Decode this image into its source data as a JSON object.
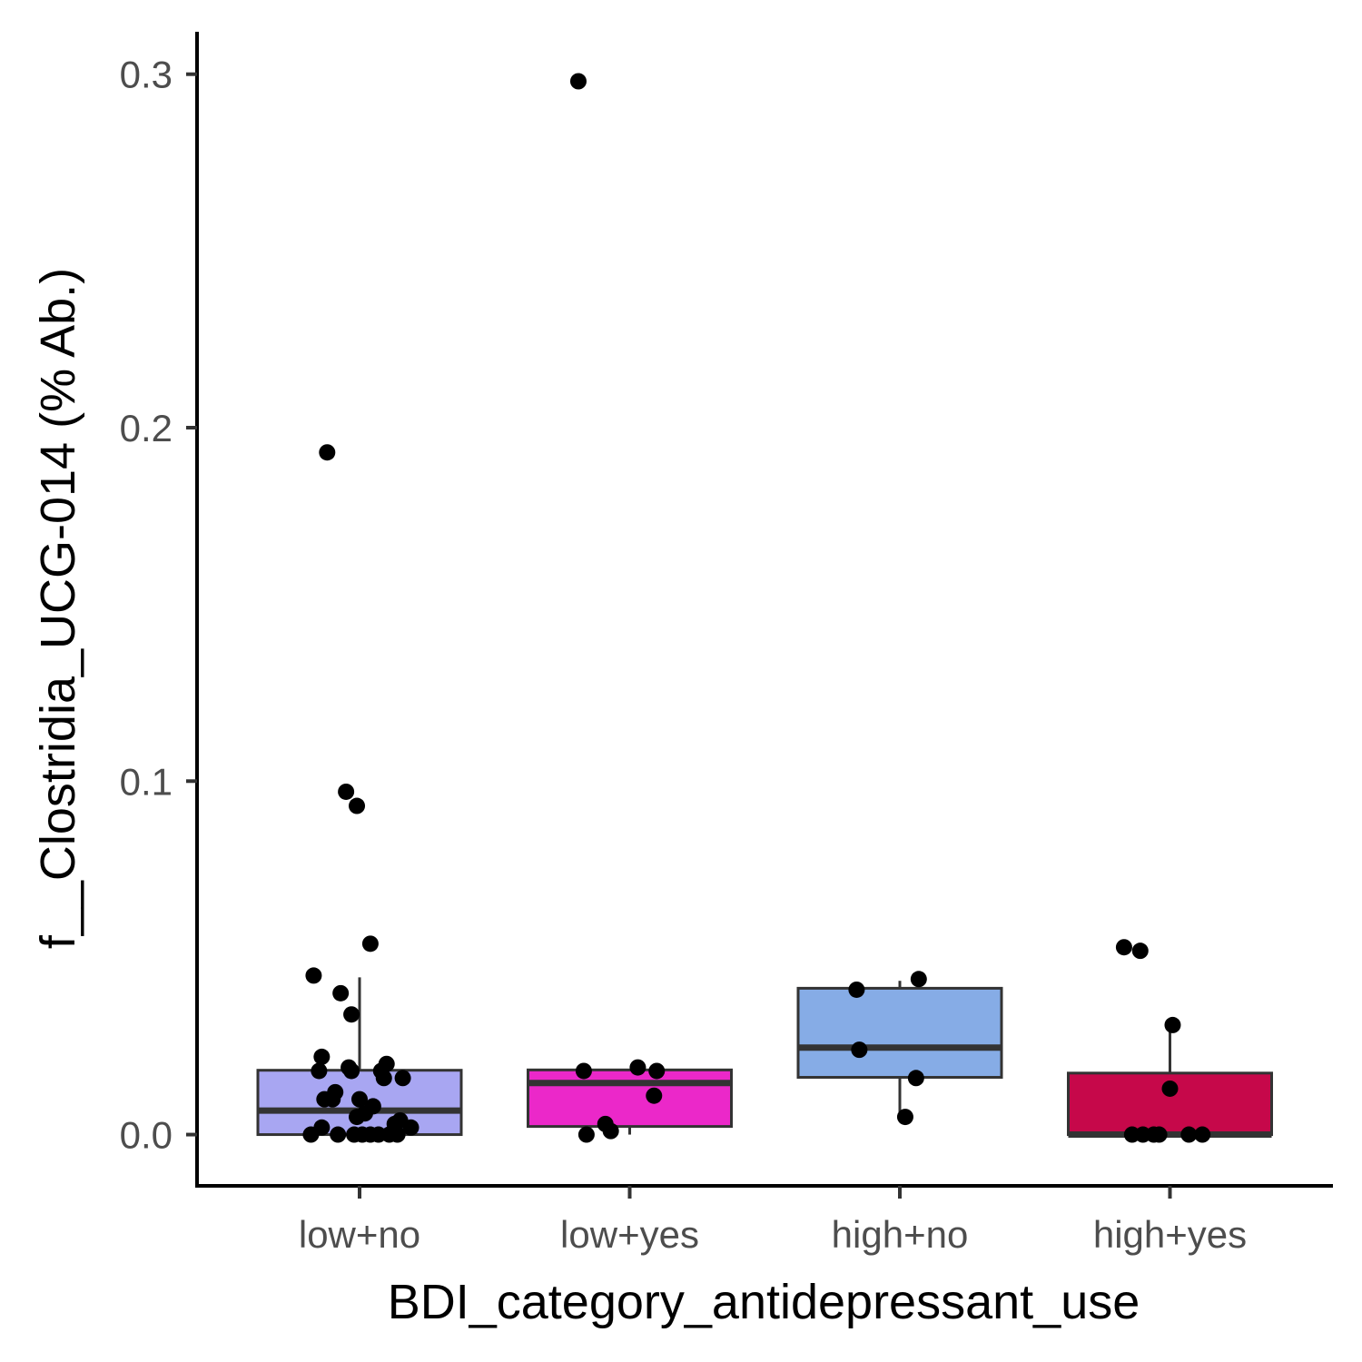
{
  "chart_data": {
    "type": "box",
    "xlabel": "BDI_category_antidepressant_use",
    "ylabel": "f__Clostridia_UCG-014 (% Ab.)",
    "ylim": [
      -0.0145,
      0.312
    ],
    "yticks": [
      0.0,
      0.1,
      0.2,
      0.3
    ],
    "ytick_labels": [
      "0.0",
      "0.1",
      "0.2",
      "0.3"
    ],
    "categories": [
      "low+no",
      "low+yes",
      "high+no",
      "high+yes"
    ],
    "grid": false,
    "legend": "none",
    "box_stroke_color": "#333333",
    "point_color": "#000000",
    "boxes": [
      {
        "category": "low+no",
        "fill": "#a8a6f2",
        "lower_whisker": 0.0,
        "q1": 0.0,
        "median": 0.0068,
        "q3": 0.0182,
        "upper_whisker": 0.0445
      },
      {
        "category": "low+yes",
        "fill": "#eb28c9",
        "lower_whisker": 0.0,
        "q1": 0.0023,
        "median": 0.0146,
        "q3": 0.0183,
        "upper_whisker": 0.0185
      },
      {
        "category": "high+no",
        "fill": "#86ace6",
        "lower_whisker": 0.005,
        "q1": 0.0162,
        "median": 0.0246,
        "q3": 0.0414,
        "upper_whisker": 0.0435
      },
      {
        "category": "high+yes",
        "fill": "#c6084a",
        "lower_whisker": 0.0,
        "q1": 0.0,
        "median": 0.0,
        "q3": 0.0174,
        "upper_whisker": 0.0314
      }
    ],
    "points": [
      {
        "category": "low+no",
        "jitter": -0.12,
        "y": 0.193
      },
      {
        "category": "low+no",
        "jitter": -0.05,
        "y": 0.097
      },
      {
        "category": "low+no",
        "jitter": -0.01,
        "y": 0.093
      },
      {
        "category": "low+no",
        "jitter": 0.04,
        "y": 0.054
      },
      {
        "category": "low+no",
        "jitter": -0.17,
        "y": 0.045
      },
      {
        "category": "low+no",
        "jitter": -0.07,
        "y": 0.04
      },
      {
        "category": "low+no",
        "jitter": -0.03,
        "y": 0.034
      },
      {
        "category": "low+no",
        "jitter": -0.14,
        "y": 0.022
      },
      {
        "category": "low+no",
        "jitter": -0.04,
        "y": 0.019
      },
      {
        "category": "low+no",
        "jitter": 0.1,
        "y": 0.02
      },
      {
        "category": "low+no",
        "jitter": -0.15,
        "y": 0.018
      },
      {
        "category": "low+no",
        "jitter": 0.08,
        "y": 0.018
      },
      {
        "category": "low+no",
        "jitter": -0.03,
        "y": 0.018
      },
      {
        "category": "low+no",
        "jitter": 0.16,
        "y": 0.016
      },
      {
        "category": "low+no",
        "jitter": 0.09,
        "y": 0.016
      },
      {
        "category": "low+no",
        "jitter": -0.09,
        "y": 0.012
      },
      {
        "category": "low+no",
        "jitter": -0.13,
        "y": 0.01
      },
      {
        "category": "low+no",
        "jitter": -0.1,
        "y": 0.01
      },
      {
        "category": "low+no",
        "jitter": 0.0,
        "y": 0.01
      },
      {
        "category": "low+no",
        "jitter": 0.05,
        "y": 0.008
      },
      {
        "category": "low+no",
        "jitter": 0.02,
        "y": 0.006
      },
      {
        "category": "low+no",
        "jitter": -0.01,
        "y": 0.005
      },
      {
        "category": "low+no",
        "jitter": 0.15,
        "y": 0.004
      },
      {
        "category": "low+no",
        "jitter": 0.13,
        "y": 0.003
      },
      {
        "category": "low+no",
        "jitter": 0.19,
        "y": 0.002
      },
      {
        "category": "low+no",
        "jitter": -0.14,
        "y": 0.002
      },
      {
        "category": "low+no",
        "jitter": -0.18,
        "y": 0.0
      },
      {
        "category": "low+no",
        "jitter": -0.08,
        "y": 0.0
      },
      {
        "category": "low+no",
        "jitter": -0.02,
        "y": 0.0
      },
      {
        "category": "low+no",
        "jitter": 0.01,
        "y": 0.0
      },
      {
        "category": "low+no",
        "jitter": 0.04,
        "y": 0.0
      },
      {
        "category": "low+no",
        "jitter": 0.07,
        "y": 0.0
      },
      {
        "category": "low+no",
        "jitter": 0.11,
        "y": 0.0
      },
      {
        "category": "low+no",
        "jitter": 0.14,
        "y": 0.0
      },
      {
        "category": "low+yes",
        "jitter": -0.19,
        "y": 0.298
      },
      {
        "category": "low+yes",
        "jitter": 0.03,
        "y": 0.019
      },
      {
        "category": "low+yes",
        "jitter": 0.1,
        "y": 0.018
      },
      {
        "category": "low+yes",
        "jitter": -0.17,
        "y": 0.018
      },
      {
        "category": "low+yes",
        "jitter": 0.09,
        "y": 0.011
      },
      {
        "category": "low+yes",
        "jitter": -0.09,
        "y": 0.003
      },
      {
        "category": "low+yes",
        "jitter": -0.07,
        "y": 0.001
      },
      {
        "category": "low+yes",
        "jitter": -0.16,
        "y": 0.0
      },
      {
        "category": "high+no",
        "jitter": 0.07,
        "y": 0.044
      },
      {
        "category": "high+no",
        "jitter": -0.16,
        "y": 0.041
      },
      {
        "category": "high+no",
        "jitter": -0.15,
        "y": 0.024
      },
      {
        "category": "high+no",
        "jitter": 0.06,
        "y": 0.016
      },
      {
        "category": "high+no",
        "jitter": 0.02,
        "y": 0.005
      },
      {
        "category": "high+yes",
        "jitter": -0.17,
        "y": 0.053
      },
      {
        "category": "high+yes",
        "jitter": -0.11,
        "y": 0.052
      },
      {
        "category": "high+yes",
        "jitter": 0.01,
        "y": 0.031
      },
      {
        "category": "high+yes",
        "jitter": 0.0,
        "y": 0.013
      },
      {
        "category": "high+yes",
        "jitter": -0.14,
        "y": 0.0
      },
      {
        "category": "high+yes",
        "jitter": -0.1,
        "y": 0.0
      },
      {
        "category": "high+yes",
        "jitter": -0.06,
        "y": 0.0
      },
      {
        "category": "high+yes",
        "jitter": -0.04,
        "y": 0.0
      },
      {
        "category": "high+yes",
        "jitter": 0.07,
        "y": 0.0
      },
      {
        "category": "high+yes",
        "jitter": 0.12,
        "y": 0.0
      }
    ]
  }
}
